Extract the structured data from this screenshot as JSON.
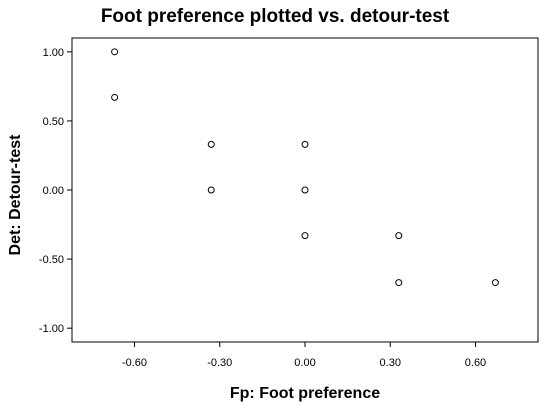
{
  "chart_data": {
    "type": "scatter",
    "title": "Foot preference plotted vs. detour-test",
    "xlabel": "Fp: Foot preference",
    "ylabel": "Det: Detour-test",
    "xlim": [
      -0.82,
      0.82
    ],
    "ylim": [
      -1.1,
      1.1
    ],
    "x_ticks": [
      -0.6,
      -0.3,
      0.0,
      0.3,
      0.6
    ],
    "x_tick_labels": [
      "-0.60",
      "-0.30",
      "0.00",
      "0.30",
      "0.60"
    ],
    "y_ticks": [
      1.0,
      0.5,
      0.0,
      -0.5,
      -1.0
    ],
    "y_tick_labels": [
      "1.00",
      "0.50",
      "0.00",
      "-0.50",
      "-1.00"
    ],
    "grid": false,
    "legend": "none",
    "marker": "open-circle",
    "marker_color": "#000000",
    "series": [
      {
        "points": [
          {
            "x": -0.67,
            "y": 1.0
          },
          {
            "x": -0.67,
            "y": 0.67
          },
          {
            "x": -0.33,
            "y": 0.33
          },
          {
            "x": -0.33,
            "y": 0.0
          },
          {
            "x": 0.0,
            "y": 0.33
          },
          {
            "x": 0.0,
            "y": 0.0
          },
          {
            "x": 0.0,
            "y": -0.33
          },
          {
            "x": 0.33,
            "y": -0.33
          },
          {
            "x": 0.33,
            "y": -0.67
          },
          {
            "x": 0.67,
            "y": -0.67
          }
        ]
      }
    ]
  }
}
